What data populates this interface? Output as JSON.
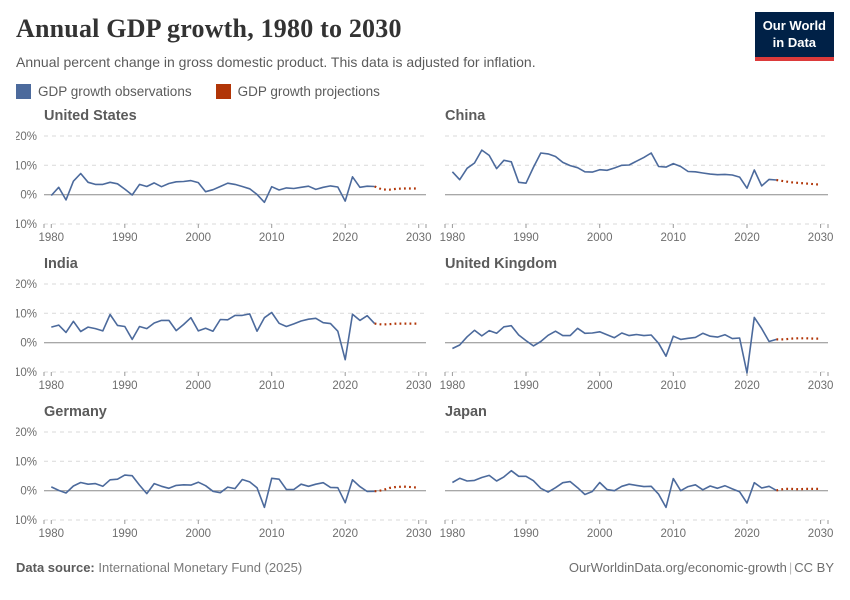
{
  "header": {
    "title": "Annual GDP growth, 1980 to 2030",
    "subtitle": "Annual percent change in gross domestic product. This data is adjusted for inflation.",
    "logo_line1": "Our World",
    "logo_line2": "in Data"
  },
  "legend": {
    "observations_label": "GDP growth observations",
    "projections_label": "GDP growth projections"
  },
  "colors": {
    "observations": "#4C6A9C",
    "projections": "#B13507",
    "gridline": "#d9d9d9",
    "zero_line": "#8c8c8c",
    "tick_mark": "#999999",
    "tick_label": "#6e6e6e",
    "logo_bg": "#002147",
    "logo_accent": "#dc3a3a"
  },
  "axes": {
    "x_domain": [
      1979,
      2031
    ],
    "y_domain": [
      -10,
      20
    ],
    "x_ticks": [
      1980,
      1990,
      2000,
      2010,
      2020,
      2030
    ],
    "y_tick_values": [
      20,
      10,
      0,
      -10
    ],
    "y_tick_labels": [
      "20%",
      "10%",
      "0%",
      "-10%"
    ],
    "y_gridlines": [
      20,
      10,
      -10
    ],
    "y_zero": 0,
    "grid_dashed": true,
    "legend_position": "top"
  },
  "chart_data": [
    {
      "type": "line",
      "title": "United States",
      "x_observations_start": 1980,
      "observations": [
        -0.3,
        2.5,
        -1.8,
        4.6,
        7.2,
        4.2,
        3.5,
        3.5,
        4.2,
        3.7,
        1.9,
        -0.1,
        3.5,
        2.8,
        4.0,
        2.7,
        3.8,
        4.4,
        4.5,
        4.8,
        4.1,
        1.0,
        1.7,
        2.8,
        3.9,
        3.5,
        2.8,
        2.0,
        0.1,
        -2.6,
        2.7,
        1.6,
        2.3,
        2.1,
        2.5,
        2.9,
        1.8,
        2.5,
        3.0,
        2.6,
        -2.2,
        6.1,
        2.5,
        2.9,
        2.8
      ],
      "x_projections_start": 2025,
      "projections": [
        1.8,
        1.7,
        2.0,
        2.1,
        2.1,
        2.1
      ]
    },
    {
      "type": "line",
      "title": "China",
      "x_observations_start": 1980,
      "observations": [
        7.8,
        5.1,
        9.0,
        10.8,
        15.2,
        13.4,
        8.9,
        11.7,
        11.2,
        4.2,
        3.9,
        9.3,
        14.2,
        13.9,
        13.0,
        11.0,
        9.9,
        9.2,
        7.8,
        7.7,
        8.5,
        8.3,
        9.1,
        10.0,
        10.1,
        11.4,
        12.7,
        14.2,
        9.6,
        9.4,
        10.6,
        9.6,
        7.9,
        7.8,
        7.4,
        7.0,
        6.8,
        6.9,
        6.7,
        6.0,
        2.2,
        8.4,
        3.0,
        5.2,
        5.0
      ],
      "x_projections_start": 2025,
      "projections": [
        4.6,
        4.2,
        4.0,
        3.8,
        3.6,
        3.4
      ]
    },
    {
      "type": "line",
      "title": "India",
      "x_observations_start": 1980,
      "observations": [
        5.3,
        6.0,
        3.5,
        7.3,
        3.8,
        5.3,
        4.8,
        4.0,
        9.6,
        5.9,
        5.5,
        1.1,
        5.5,
        4.8,
        6.7,
        7.6,
        7.6,
        4.1,
        6.2,
        8.5,
        4.0,
        4.9,
        3.9,
        7.9,
        7.8,
        9.3,
        9.3,
        9.8,
        3.9,
        8.5,
        10.3,
        6.6,
        5.5,
        6.4,
        7.4,
        8.0,
        8.3,
        6.8,
        6.5,
        3.9,
        -5.8,
        9.7,
        7.6,
        9.2,
        6.5
      ],
      "x_projections_start": 2025,
      "projections": [
        6.2,
        6.3,
        6.5,
        6.5,
        6.5,
        6.5
      ]
    },
    {
      "type": "line",
      "title": "United Kingdom",
      "x_observations_start": 1980,
      "observations": [
        -2.0,
        -0.8,
        2.0,
        4.2,
        2.3,
        4.1,
        3.2,
        5.4,
        5.8,
        2.6,
        0.7,
        -1.1,
        0.4,
        2.5,
        3.9,
        2.4,
        2.4,
        4.9,
        3.2,
        3.3,
        3.7,
        2.7,
        1.7,
        3.3,
        2.4,
        2.8,
        2.4,
        2.6,
        -0.2,
        -4.6,
        2.2,
        1.1,
        1.5,
        1.8,
        3.2,
        2.2,
        1.9,
        2.7,
        1.4,
        1.6,
        -10.3,
        8.6,
        4.8,
        0.4,
        1.1
      ],
      "x_projections_start": 2025,
      "projections": [
        1.1,
        1.4,
        1.5,
        1.5,
        1.4,
        1.4
      ]
    },
    {
      "type": "line",
      "title": "Germany",
      "x_observations_start": 1980,
      "observations": [
        1.3,
        0.1,
        -0.8,
        1.6,
        2.8,
        2.2,
        2.4,
        1.5,
        3.7,
        3.9,
        5.3,
        5.1,
        1.9,
        -1.0,
        2.4,
        1.5,
        0.8,
        1.8,
        2.0,
        1.9,
        2.9,
        1.7,
        -0.2,
        -0.7,
        1.2,
        0.7,
        3.8,
        3.0,
        1.0,
        -5.7,
        4.2,
        3.9,
        0.4,
        0.4,
        2.2,
        1.5,
        2.2,
        2.7,
        1.1,
        1.0,
        -4.1,
        3.7,
        1.4,
        -0.3,
        -0.2
      ],
      "x_projections_start": 2025,
      "projections": [
        0.1,
        0.9,
        1.3,
        1.4,
        1.2,
        1.0
      ]
    },
    {
      "type": "line",
      "title": "Japan",
      "x_observations_start": 1980,
      "observations": [
        2.8,
        4.2,
        3.3,
        3.5,
        4.5,
        5.2,
        3.3,
        4.7,
        6.8,
        4.9,
        4.9,
        3.4,
        0.8,
        -0.5,
        1.0,
        2.7,
        3.1,
        1.0,
        -1.3,
        -0.3,
        2.8,
        0.4,
        0.0,
        1.5,
        2.2,
        1.8,
        1.4,
        1.5,
        -1.2,
        -5.7,
        4.1,
        0.0,
        1.4,
        2.0,
        0.3,
        1.6,
        0.8,
        1.7,
        0.6,
        -0.4,
        -4.2,
        2.7,
        0.9,
        1.5,
        0.1
      ],
      "x_projections_start": 2025,
      "projections": [
        0.6,
        0.6,
        0.5,
        0.6,
        0.6,
        0.6
      ]
    }
  ],
  "footer": {
    "source_label": "Data source:",
    "source_value": "International Monetary Fund (2025)",
    "url": "OurWorldinData.org/economic-growth",
    "separator": "|",
    "license": "CC BY"
  }
}
